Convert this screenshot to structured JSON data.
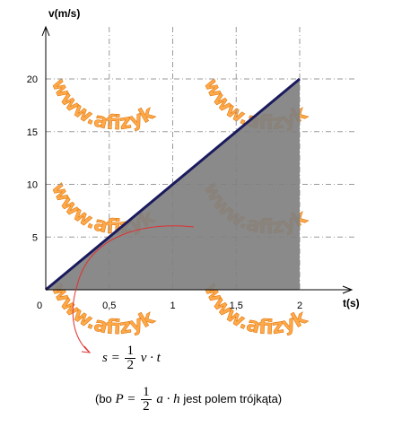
{
  "chart_data": {
    "type": "area",
    "x": [
      0,
      2
    ],
    "y": [
      0,
      20
    ],
    "x_ticks": [
      0,
      0.5,
      1,
      1.5,
      2
    ],
    "x_tick_labels": [
      "0",
      "0,5",
      "1",
      "1,5",
      "2"
    ],
    "y_ticks": [
      5,
      10,
      15,
      20
    ],
    "y_tick_labels": [
      "5",
      "10",
      "15",
      "20"
    ],
    "xlabel": "t(s)",
    "ylabel": "v(m/s)",
    "xlim": [
      0,
      2.3
    ],
    "ylim": [
      0,
      23
    ],
    "grid": true,
    "fill_color": "#808080",
    "line_color": "#1a1a5e",
    "annotation_color": "#e03030"
  },
  "watermark": "www.afizyka.pl",
  "formula": {
    "lhs": "s =",
    "frac_num": "1",
    "frac_den": "2",
    "rhs": "v · t"
  },
  "note": {
    "prefix": "(bo",
    "lhs": "P =",
    "frac_num": "1",
    "frac_den": "2",
    "rhs": "a · h",
    "suffix": "jest polem trójkąta)"
  }
}
